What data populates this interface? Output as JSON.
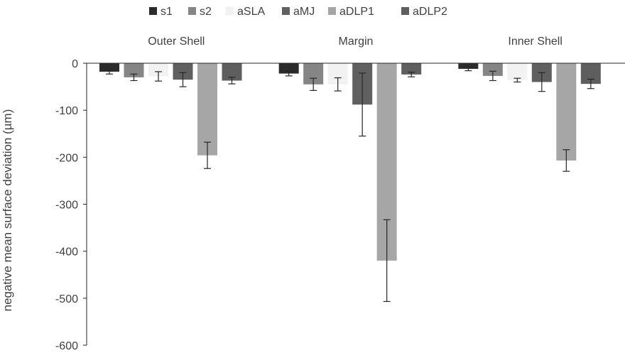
{
  "chart_data": {
    "type": "bar",
    "title": "",
    "xlabel": "",
    "ylabel": "negative mean surface deviation (µm)",
    "ylim": [
      -600,
      0
    ],
    "yticks": [
      0,
      -100,
      -200,
      -300,
      -400,
      -500,
      -600
    ],
    "grid": false,
    "legend_position": "top",
    "categories": [
      "Outer Shell",
      "Margin",
      "Inner Shell"
    ],
    "category_label_position": "top",
    "series": [
      {
        "name": "s1",
        "color": "#2b2b2b",
        "values": [
          -18,
          -22,
          -12
        ],
        "errors": [
          5,
          5,
          4
        ]
      },
      {
        "name": "s2",
        "color": "#858585",
        "values": [
          -30,
          -45,
          -27
        ],
        "errors": [
          7,
          13,
          10
        ]
      },
      {
        "name": "aSLA",
        "color": "#f2f2f2",
        "values": [
          -28,
          -45,
          -36
        ],
        "errors": [
          10,
          14,
          4
        ]
      },
      {
        "name": "aMJ",
        "color": "#606060",
        "values": [
          -35,
          -88,
          -40
        ],
        "errors": [
          15,
          67,
          20
        ]
      },
      {
        "name": "aDLP1",
        "color": "#a6a6a6",
        "values": [
          -196,
          -420,
          -207
        ],
        "errors": [
          28,
          87,
          23
        ]
      },
      {
        "name": "aDLP2",
        "color": "#5e5e5e",
        "values": [
          -37,
          -24,
          -44
        ],
        "errors": [
          7,
          5,
          10
        ]
      }
    ]
  }
}
